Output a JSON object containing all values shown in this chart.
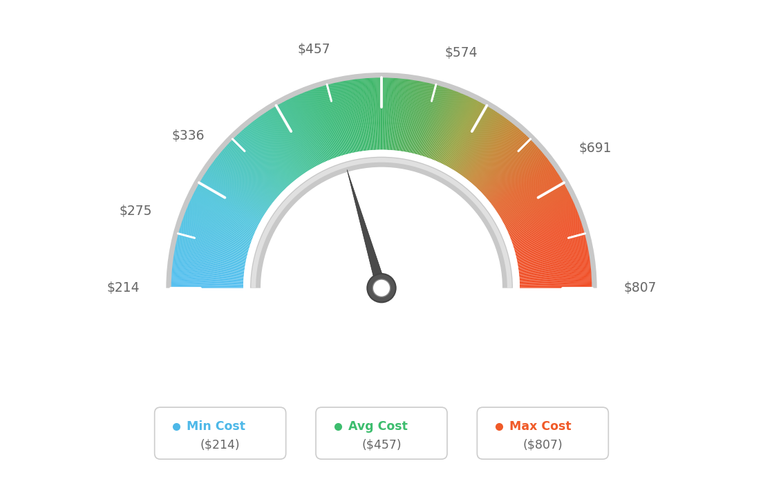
{
  "min_value": 214,
  "avg_value": 457,
  "max_value": 807,
  "tick_labels": [
    "$214",
    "$275",
    "$336",
    "$457",
    "$574",
    "$691",
    "$807"
  ],
  "tick_values": [
    214,
    275,
    336,
    457,
    574,
    691,
    807
  ],
  "legend": [
    {
      "label": "Min Cost",
      "value": "($214)",
      "color": "#4db8e8"
    },
    {
      "label": "Avg Cost",
      "value": "($457)",
      "color": "#3dbd6e"
    },
    {
      "label": "Max Cost",
      "value": "($807)",
      "color": "#f05a28"
    }
  ],
  "needle_value": 457,
  "background_color": "#ffffff",
  "color_stops": [
    [
      0.0,
      [
        82,
        190,
        240
      ]
    ],
    [
      0.15,
      [
        75,
        195,
        220
      ]
    ],
    [
      0.28,
      [
        65,
        195,
        165
      ]
    ],
    [
      0.4,
      [
        55,
        185,
        120
      ]
    ],
    [
      0.5,
      [
        60,
        180,
        100
      ]
    ],
    [
      0.58,
      [
        90,
        170,
        80
      ]
    ],
    [
      0.65,
      [
        150,
        160,
        60
      ]
    ],
    [
      0.72,
      [
        195,
        130,
        45
      ]
    ],
    [
      0.8,
      [
        225,
        95,
        35
      ]
    ],
    [
      0.9,
      [
        238,
        78,
        35
      ]
    ],
    [
      1.0,
      [
        240,
        75,
        35
      ]
    ]
  ]
}
